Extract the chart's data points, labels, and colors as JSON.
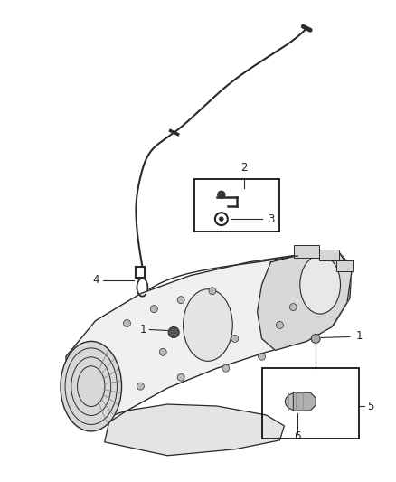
{
  "background_color": "#ffffff",
  "fig_width": 4.38,
  "fig_height": 5.33,
  "dpi": 100,
  "line_color": "#2a2a2a",
  "font_size": 8.5,
  "label_color": "#222222",
  "tube_color": "#2a2a2a",
  "body_fill": "#f0f0f0",
  "body_dark": "#d8d8d8",
  "body_mid": "#e4e4e4",
  "shadow": "#c0c0c0"
}
